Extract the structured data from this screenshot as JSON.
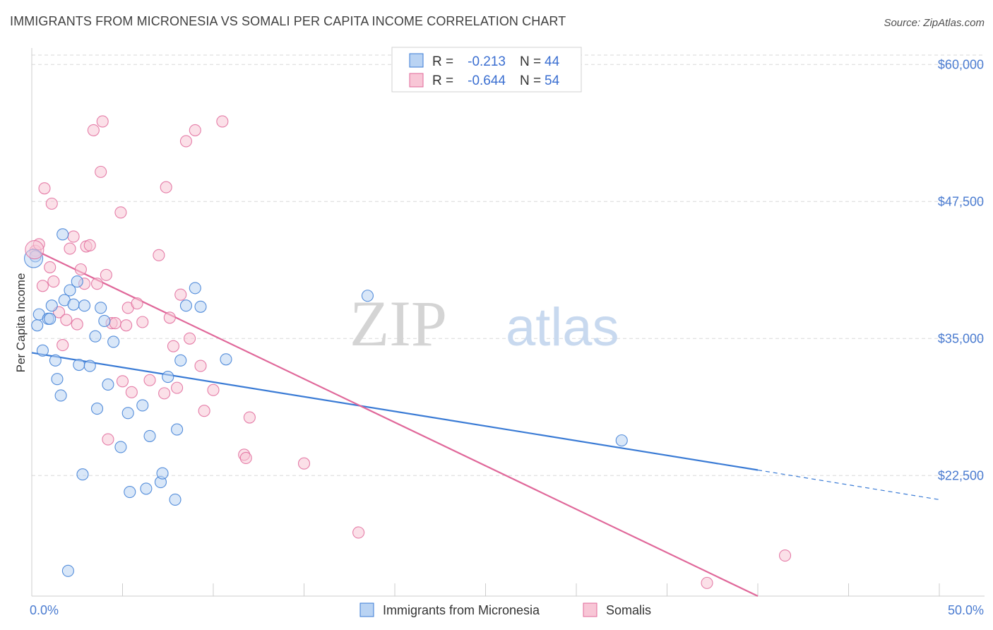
{
  "title": "IMMIGRANTS FROM MICRONESIA VS SOMALI PER CAPITA INCOME CORRELATION CHART",
  "source": "Source: ZipAtlas.com",
  "watermark": {
    "zip": "ZIP",
    "atlas": "atlas"
  },
  "colors": {
    "blue": "#3a7bd5",
    "blue_fill": "#b9d3f3",
    "pink": "#e0689a",
    "pink_fill": "#f8c6d6",
    "grid": "#d9d9d9",
    "tick_text": "#4a7bd0"
  },
  "legend": {
    "rows": [
      {
        "r_label": "R =",
        "r_value": "-0.213",
        "n_label": "N =",
        "n_value": "44"
      },
      {
        "r_label": "R =",
        "r_value": "-0.644",
        "n_label": "N =",
        "n_value": "54"
      }
    ]
  },
  "bottom_legend": [
    "Immigrants from Micronesia",
    "Somalis"
  ],
  "chart_data": {
    "type": "scatter",
    "title": "IMMIGRANTS FROM MICRONESIA VS SOMALI PER CAPITA INCOME CORRELATION CHART",
    "xlabel": "",
    "ylabel": "Per Capita Income",
    "xlim": [
      0,
      50
    ],
    "ylim": [
      11500,
      61500
    ],
    "x_tick_labels": [
      {
        "value": 0,
        "label": "0.0%"
      },
      {
        "value": 50,
        "label": "50.0%"
      }
    ],
    "x_minor_ticks": [
      5,
      10,
      15,
      20,
      25,
      30,
      35,
      40,
      45,
      50
    ],
    "y_ticks": [
      {
        "value": 60000,
        "label": "$60,000"
      },
      {
        "value": 47500,
        "label": "$47,500"
      },
      {
        "value": 35000,
        "label": "$35,000"
      },
      {
        "value": 22500,
        "label": "$22,500"
      }
    ],
    "series": [
      {
        "name": "Immigrants from Micronesia",
        "color": "#3a7bd5",
        "fill": "#b9d3f3",
        "r": -0.213,
        "n": 44,
        "trend": {
          "x0": 0,
          "y0": 33700,
          "x1": 40,
          "y1": 23000,
          "dash_x1": 50,
          "dash_y1": 20300
        },
        "points": [
          [
            0.2,
            42500
          ],
          [
            0.3,
            36200
          ],
          [
            0.4,
            37200
          ],
          [
            0.6,
            33900
          ],
          [
            0.9,
            36800
          ],
          [
            1.0,
            36800
          ],
          [
            1.1,
            38000
          ],
          [
            1.3,
            33000
          ],
          [
            1.4,
            31300
          ],
          [
            1.6,
            29800
          ],
          [
            1.7,
            44500
          ],
          [
            1.8,
            38500
          ],
          [
            2.0,
            13800
          ],
          [
            2.1,
            39400
          ],
          [
            2.3,
            38100
          ],
          [
            2.5,
            40200
          ],
          [
            2.6,
            32600
          ],
          [
            2.8,
            22600
          ],
          [
            2.9,
            38000
          ],
          [
            3.2,
            32500
          ],
          [
            3.5,
            35200
          ],
          [
            3.6,
            28600
          ],
          [
            3.8,
            37800
          ],
          [
            4.0,
            36600
          ],
          [
            4.2,
            30800
          ],
          [
            4.5,
            34700
          ],
          [
            4.9,
            25100
          ],
          [
            5.3,
            28200
          ],
          [
            5.4,
            21000
          ],
          [
            6.1,
            28900
          ],
          [
            6.3,
            21300
          ],
          [
            6.5,
            26100
          ],
          [
            7.1,
            21900
          ],
          [
            7.2,
            22700
          ],
          [
            7.5,
            31500
          ],
          [
            7.9,
            20300
          ],
          [
            8.0,
            26700
          ],
          [
            8.2,
            33000
          ],
          [
            8.5,
            38000
          ],
          [
            9.0,
            39600
          ],
          [
            9.3,
            37900
          ],
          [
            10.7,
            33100
          ],
          [
            18.5,
            38900
          ],
          [
            32.5,
            25700
          ]
        ]
      },
      {
        "name": "Somalis",
        "color": "#e0689a",
        "fill": "#f8c6d6",
        "r": -0.644,
        "n": 54,
        "trend": {
          "x0": 0,
          "y0": 43200,
          "x1": 40,
          "y1": 11500
        },
        "points": [
          [
            0.2,
            43000
          ],
          [
            0.4,
            43600
          ],
          [
            0.6,
            39800
          ],
          [
            0.7,
            48700
          ],
          [
            1.0,
            41500
          ],
          [
            1.1,
            47300
          ],
          [
            1.2,
            40200
          ],
          [
            1.5,
            37400
          ],
          [
            1.7,
            34400
          ],
          [
            1.9,
            36700
          ],
          [
            2.1,
            43200
          ],
          [
            2.3,
            44300
          ],
          [
            2.5,
            36300
          ],
          [
            2.7,
            41300
          ],
          [
            2.9,
            40000
          ],
          [
            3.0,
            43400
          ],
          [
            3.2,
            43500
          ],
          [
            3.4,
            54000
          ],
          [
            3.6,
            40000
          ],
          [
            3.8,
            50200
          ],
          [
            3.9,
            54800
          ],
          [
            4.1,
            40800
          ],
          [
            4.2,
            25800
          ],
          [
            4.4,
            36400
          ],
          [
            4.6,
            36400
          ],
          [
            4.9,
            46500
          ],
          [
            5.0,
            31100
          ],
          [
            5.2,
            36200
          ],
          [
            5.3,
            37800
          ],
          [
            5.5,
            30100
          ],
          [
            5.8,
            38200
          ],
          [
            6.1,
            36500
          ],
          [
            6.5,
            31200
          ],
          [
            7.0,
            42600
          ],
          [
            7.3,
            30000
          ],
          [
            7.4,
            48800
          ],
          [
            7.6,
            36900
          ],
          [
            7.8,
            34300
          ],
          [
            8.0,
            30500
          ],
          [
            8.2,
            39000
          ],
          [
            8.5,
            53000
          ],
          [
            8.7,
            35000
          ],
          [
            9.0,
            54000
          ],
          [
            9.3,
            32500
          ],
          [
            9.5,
            28400
          ],
          [
            10.0,
            30300
          ],
          [
            10.5,
            54800
          ],
          [
            11.7,
            24400
          ],
          [
            11.8,
            24100
          ],
          [
            12.0,
            27800
          ],
          [
            15.0,
            23600
          ],
          [
            18.0,
            17300
          ],
          [
            37.2,
            12700
          ],
          [
            41.5,
            15200
          ]
        ]
      }
    ]
  }
}
